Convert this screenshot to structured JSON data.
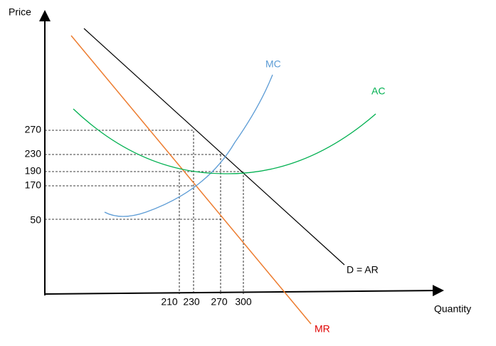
{
  "axes": {
    "y_label": "Price",
    "x_label": "Quantity"
  },
  "y_ticks": [
    "270",
    "230",
    "190",
    "170",
    "50"
  ],
  "x_ticks": [
    "210",
    "230",
    "270",
    "300"
  ],
  "curves": {
    "mc": "MC",
    "ac": "AC",
    "demand": "D = AR",
    "mr": "MR"
  }
}
